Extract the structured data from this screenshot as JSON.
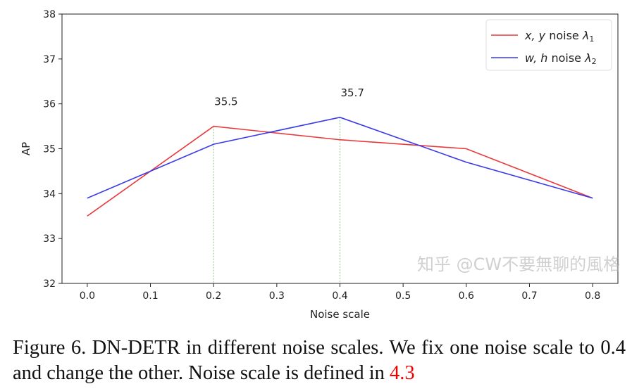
{
  "chart_data": {
    "type": "line",
    "xlabel": "Noise scale",
    "ylabel": "AP",
    "xlim": [
      -0.04,
      0.84
    ],
    "ylim": [
      32,
      38
    ],
    "xticks": [
      "0.0",
      "0.1",
      "0.2",
      "0.3",
      "0.4",
      "0.5",
      "0.6",
      "0.7",
      "0.8"
    ],
    "yticks": [
      "32",
      "33",
      "34",
      "35",
      "36",
      "37",
      "38"
    ],
    "x": [
      0.0,
      0.2,
      0.4,
      0.6,
      0.8
    ],
    "series": [
      {
        "name": "x, y noise λ1",
        "color": "#e8393c",
        "values": [
          33.5,
          35.5,
          35.2,
          35.0,
          33.9
        ]
      },
      {
        "name": "w, h noise λ2",
        "color": "#3a3ae8",
        "values": [
          33.9,
          35.1,
          35.7,
          34.7,
          33.9
        ]
      }
    ],
    "legend_text": [
      {
        "var": "x, y",
        "rest": " noise ",
        "lam": "λ",
        "sub": "1"
      },
      {
        "var": "w, h",
        "rest": " noise ",
        "lam": "λ",
        "sub": "2"
      }
    ],
    "annotations": [
      {
        "x": 0.2,
        "y": 35.5,
        "text": "35.5"
      },
      {
        "x": 0.4,
        "y": 35.7,
        "text": "35.7"
      }
    ],
    "vlines_color": "#9ccc9c",
    "grid": false,
    "legend_position": "top-right"
  },
  "caption": {
    "text": "Figure 6.  DN-DETR in different noise scales.  We fix one noise scale to 0.4 and change the other. Noise scale is defined in ",
    "ref": "4.3"
  },
  "watermark": "知乎 @CW不要無聊的風格"
}
